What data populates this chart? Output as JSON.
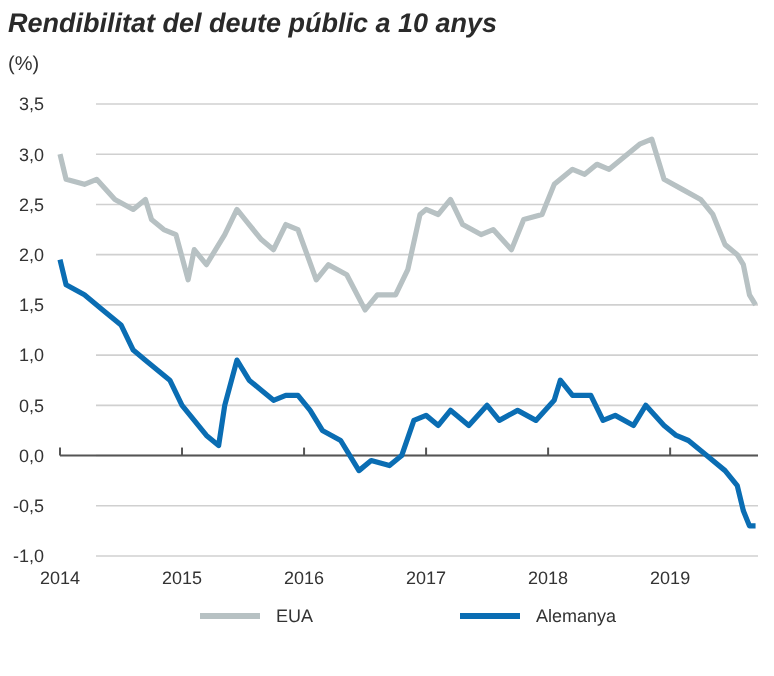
{
  "chart_data": {
    "type": "line",
    "title": "Rendibilitat del deute públic a 10 anys",
    "ylabel": "(%)",
    "xlim": [
      2014,
      2019.72
    ],
    "xticks": [
      2014,
      2015,
      2016,
      2017,
      2018,
      2019
    ],
    "ylim": [
      -1,
      3.5
    ],
    "yticks": [
      {
        "value": -1,
        "label": "-1,0"
      },
      {
        "value": -0.5,
        "label": "-0,5"
      },
      {
        "value": 0,
        "label": "0,0"
      },
      {
        "value": 0.5,
        "label": "0,5"
      },
      {
        "value": 1,
        "label": "1,0"
      },
      {
        "value": 1.5,
        "label": "1,5"
      },
      {
        "value": 2,
        "label": "2,0"
      },
      {
        "value": 2.5,
        "label": "2,5"
      },
      {
        "value": 3,
        "label": "3,0"
      },
      {
        "value": 3.5,
        "label": "3,5"
      }
    ],
    "grid": "y",
    "legend": "bottom",
    "line_style": "solid",
    "marker": "none",
    "series": [
      {
        "name": "EUA",
        "color": "#b7c1c3",
        "x": [
          2014.0,
          2014.05,
          2014.2,
          2014.3,
          2014.45,
          2014.6,
          2014.7,
          2014.75,
          2014.85,
          2014.95,
          2015.05,
          2015.1,
          2015.2,
          2015.35,
          2015.45,
          2015.55,
          2015.65,
          2015.75,
          2015.85,
          2015.95,
          2016.1,
          2016.2,
          2016.35,
          2016.5,
          2016.6,
          2016.75,
          2016.85,
          2016.95,
          2017.0,
          2017.1,
          2017.2,
          2017.3,
          2017.45,
          2017.55,
          2017.7,
          2017.8,
          2017.95,
          2018.05,
          2018.2,
          2018.3,
          2018.4,
          2018.5,
          2018.6,
          2018.75,
          2018.85,
          2018.95,
          2019.1,
          2019.25,
          2019.35,
          2019.45,
          2019.55,
          2019.6,
          2019.65,
          2019.7
        ],
        "values": [
          3.0,
          2.75,
          2.7,
          2.75,
          2.55,
          2.45,
          2.55,
          2.35,
          2.25,
          2.2,
          1.75,
          2.05,
          1.9,
          2.2,
          2.45,
          2.3,
          2.15,
          2.05,
          2.3,
          2.25,
          1.75,
          1.9,
          1.8,
          1.45,
          1.6,
          1.6,
          1.85,
          2.4,
          2.45,
          2.4,
          2.55,
          2.3,
          2.2,
          2.25,
          2.05,
          2.35,
          2.4,
          2.7,
          2.85,
          2.8,
          2.9,
          2.85,
          2.95,
          3.1,
          3.15,
          2.75,
          2.65,
          2.55,
          2.4,
          2.1,
          2.0,
          1.9,
          1.6,
          1.5
        ]
      },
      {
        "name": "Alemanya",
        "color": "#0a6db3",
        "x": [
          2014.0,
          2014.05,
          2014.2,
          2014.35,
          2014.5,
          2014.6,
          2014.7,
          2014.8,
          2014.9,
          2015.0,
          2015.1,
          2015.2,
          2015.3,
          2015.35,
          2015.45,
          2015.55,
          2015.65,
          2015.75,
          2015.85,
          2015.95,
          2016.05,
          2016.15,
          2016.3,
          2016.45,
          2016.55,
          2016.7,
          2016.8,
          2016.9,
          2017.0,
          2017.1,
          2017.2,
          2017.35,
          2017.5,
          2017.6,
          2017.75,
          2017.9,
          2018.05,
          2018.1,
          2018.2,
          2018.35,
          2018.45,
          2018.55,
          2018.7,
          2018.8,
          2018.95,
          2019.05,
          2019.15,
          2019.3,
          2019.45,
          2019.55,
          2019.6,
          2019.65,
          2019.7
        ],
        "values": [
          1.95,
          1.7,
          1.6,
          1.45,
          1.3,
          1.05,
          0.95,
          0.85,
          0.75,
          0.5,
          0.35,
          0.2,
          0.1,
          0.5,
          0.95,
          0.75,
          0.65,
          0.55,
          0.6,
          0.6,
          0.45,
          0.25,
          0.15,
          -0.15,
          -0.05,
          -0.1,
          0.0,
          0.35,
          0.4,
          0.3,
          0.45,
          0.3,
          0.5,
          0.35,
          0.45,
          0.35,
          0.55,
          0.75,
          0.6,
          0.6,
          0.35,
          0.4,
          0.3,
          0.5,
          0.3,
          0.2,
          0.15,
          0.0,
          -0.15,
          -0.3,
          -0.55,
          -0.7,
          -0.7
        ]
      }
    ]
  }
}
